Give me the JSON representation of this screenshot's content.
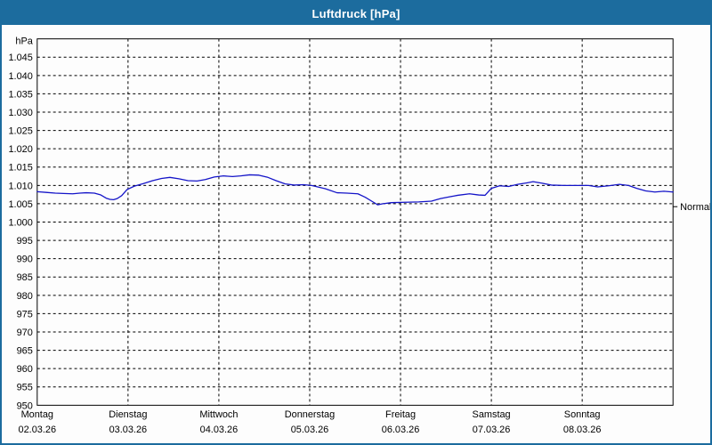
{
  "window": {
    "title": "Luftdruck [hPa]",
    "title_bar_color": "#1C6C9E",
    "border_color": "#1C6C9E",
    "background": "#FDFDFD"
  },
  "chart_data": {
    "type": "line",
    "title": "Luftdruck [hPa]",
    "unit_label": "hPa",
    "ylabel": "hPa",
    "xlabel": "",
    "ylim": [
      950,
      1050
    ],
    "grid": "dashed",
    "grid_color": "#000000",
    "line_color": "#1414C8",
    "legend_position": "none",
    "y_ticks": [
      {
        "v": 1045,
        "label": "1.045"
      },
      {
        "v": 1040,
        "label": "1.040"
      },
      {
        "v": 1035,
        "label": "1.035"
      },
      {
        "v": 1030,
        "label": "1.030"
      },
      {
        "v": 1025,
        "label": "1.025"
      },
      {
        "v": 1020,
        "label": "1.020"
      },
      {
        "v": 1015,
        "label": "1.015"
      },
      {
        "v": 1010,
        "label": "1.010"
      },
      {
        "v": 1005,
        "label": "1.005"
      },
      {
        "v": 1000,
        "label": "1.000"
      },
      {
        "v": 995,
        "label": "995"
      },
      {
        "v": 990,
        "label": "990"
      },
      {
        "v": 985,
        "label": "985"
      },
      {
        "v": 980,
        "label": "980"
      },
      {
        "v": 975,
        "label": "975"
      },
      {
        "v": 970,
        "label": "970"
      },
      {
        "v": 965,
        "label": "965"
      },
      {
        "v": 960,
        "label": "960"
      },
      {
        "v": 955,
        "label": "955"
      },
      {
        "v": 950,
        "label": "950"
      }
    ],
    "x_days": [
      {
        "name": "Montag",
        "date": "02.03.26"
      },
      {
        "name": "Dienstag",
        "date": "03.03.26"
      },
      {
        "name": "Mittwoch",
        "date": "04.03.26"
      },
      {
        "name": "Donnerstag",
        "date": "05.03.26"
      },
      {
        "name": "Freitag",
        "date": "06.03.26"
      },
      {
        "name": "Samstag",
        "date": "07.03.26"
      },
      {
        "name": "Sonntag",
        "date": "08.03.26"
      }
    ],
    "normal_marker": {
      "label": "Normal",
      "value": 1004.2
    },
    "series": [
      {
        "name": "Luftdruck",
        "points": [
          [
            0.0,
            1008.3
          ],
          [
            0.1,
            1008.1
          ],
          [
            0.2,
            1007.9
          ],
          [
            0.29,
            1007.8
          ],
          [
            0.39,
            1007.7
          ],
          [
            0.47,
            1007.9
          ],
          [
            0.54,
            1008.0
          ],
          [
            0.63,
            1007.9
          ],
          [
            0.7,
            1007.4
          ],
          [
            0.76,
            1006.5
          ],
          [
            0.8,
            1006.2
          ],
          [
            0.84,
            1006.1
          ],
          [
            0.88,
            1006.4
          ],
          [
            0.93,
            1007.2
          ],
          [
            0.99,
            1008.9
          ],
          [
            1.07,
            1009.8
          ],
          [
            1.17,
            1010.5
          ],
          [
            1.27,
            1011.3
          ],
          [
            1.37,
            1011.9
          ],
          [
            1.46,
            1012.2
          ],
          [
            1.56,
            1011.8
          ],
          [
            1.66,
            1011.3
          ],
          [
            1.76,
            1011.2
          ],
          [
            1.85,
            1011.6
          ],
          [
            1.95,
            1012.3
          ],
          [
            2.05,
            1012.6
          ],
          [
            2.15,
            1012.4
          ],
          [
            2.24,
            1012.6
          ],
          [
            2.34,
            1012.9
          ],
          [
            2.44,
            1012.8
          ],
          [
            2.54,
            1012.2
          ],
          [
            2.63,
            1011.3
          ],
          [
            2.73,
            1010.4
          ],
          [
            2.83,
            1010.1
          ],
          [
            2.93,
            1010.2
          ],
          [
            3.02,
            1010.0
          ],
          [
            3.17,
            1009.1
          ],
          [
            3.3,
            1008.0
          ],
          [
            3.41,
            1007.9
          ],
          [
            3.53,
            1007.7
          ],
          [
            3.61,
            1006.8
          ],
          [
            3.69,
            1005.6
          ],
          [
            3.75,
            1004.7
          ],
          [
            3.8,
            1005.0
          ],
          [
            3.9,
            1005.3
          ],
          [
            4.05,
            1005.4
          ],
          [
            4.2,
            1005.5
          ],
          [
            4.34,
            1005.7
          ],
          [
            4.44,
            1006.4
          ],
          [
            4.54,
            1006.9
          ],
          [
            4.63,
            1007.3
          ],
          [
            4.76,
            1007.7
          ],
          [
            4.86,
            1007.4
          ],
          [
            4.93,
            1007.3
          ],
          [
            5.0,
            1009.2
          ],
          [
            5.09,
            1009.9
          ],
          [
            5.19,
            1009.7
          ],
          [
            5.29,
            1010.3
          ],
          [
            5.39,
            1010.7
          ],
          [
            5.46,
            1011.0
          ],
          [
            5.56,
            1010.6
          ],
          [
            5.66,
            1010.1
          ],
          [
            5.8,
            1010.0
          ],
          [
            5.95,
            1010.0
          ],
          [
            6.07,
            1010.0
          ],
          [
            6.17,
            1009.6
          ],
          [
            6.29,
            1009.9
          ],
          [
            6.41,
            1010.3
          ],
          [
            6.51,
            1010.0
          ],
          [
            6.6,
            1009.2
          ],
          [
            6.7,
            1008.5
          ],
          [
            6.8,
            1008.2
          ],
          [
            6.9,
            1008.4
          ],
          [
            7.0,
            1008.2
          ]
        ]
      }
    ]
  }
}
